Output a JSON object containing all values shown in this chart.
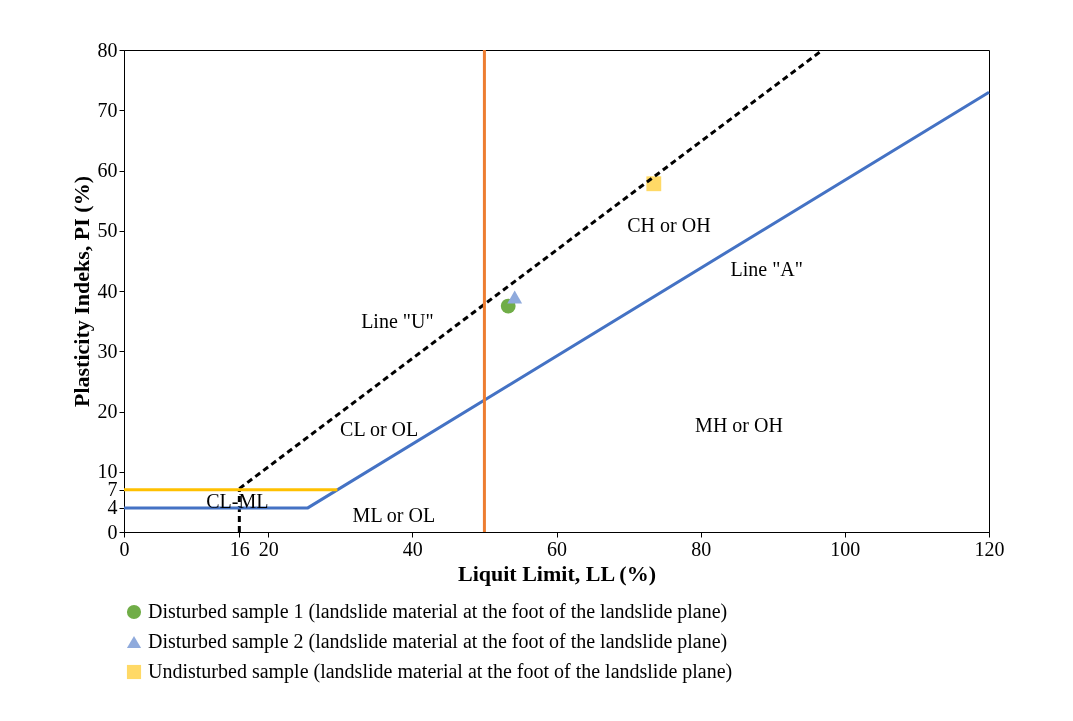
{
  "chart_data": {
    "type": "scatter",
    "xlabel": "Liquit Limit, LL (%)",
    "ylabel": "Plasticity Indeks, PI (%)",
    "xlim": [
      0,
      120
    ],
    "xticks": [
      0,
      16,
      20,
      40,
      60,
      80,
      100,
      120
    ],
    "ylim": [
      0,
      80
    ],
    "yticks": [
      0,
      4,
      7,
      10,
      20,
      30,
      40,
      50,
      60,
      70,
      80
    ],
    "grid": false,
    "legend": "bottom",
    "series": [
      {
        "name": "Disturbed sample 1 (landslide material at the foot of the landslide plane)",
        "color": "#70ad47",
        "marker": "circle",
        "x": [
          53.3
        ],
        "values": [
          37.5
        ]
      },
      {
        "name": "Disturbed sample 2 (landslide material at the foot of the landslide plane)",
        "color": "#8faadc",
        "marker": "triangle",
        "x": [
          54.2
        ],
        "values": [
          39
        ]
      },
      {
        "name": "Undisturbed sample (landslide material at the foot of the landslide plane)",
        "color": "#ffd966",
        "marker": "square",
        "x": [
          73.5
        ],
        "values": [
          57.8
        ]
      },
      {
        "type": "line",
        "color": "#000000",
        "line_style": "dashed",
        "x": [
          16,
          96.9
        ],
        "values": [
          7.2,
          80
        ]
      },
      {
        "type": "line",
        "color": "#000000",
        "line_style": "dashed",
        "x": [
          16,
          16
        ],
        "values": [
          0,
          7
        ]
      },
      {
        "type": "line",
        "color": "#4472c4",
        "line_style": "solid",
        "x": [
          0,
          25.5,
          120
        ],
        "values": [
          4,
          4,
          73
        ]
      },
      {
        "type": "line",
        "color": "#ffc000",
        "line_style": "solid",
        "x": [
          0,
          29.6
        ],
        "values": [
          7,
          7
        ]
      }
    ],
    "ref_lines": [
      {
        "axis": "x",
        "value": 50,
        "color": "#ed7d31"
      }
    ],
    "annotations": [
      "Line \"U\"",
      "Line \"A\"",
      "CH or OH",
      "MH or OH",
      "CL or OL",
      "CL-ML",
      "ML or OL"
    ]
  }
}
